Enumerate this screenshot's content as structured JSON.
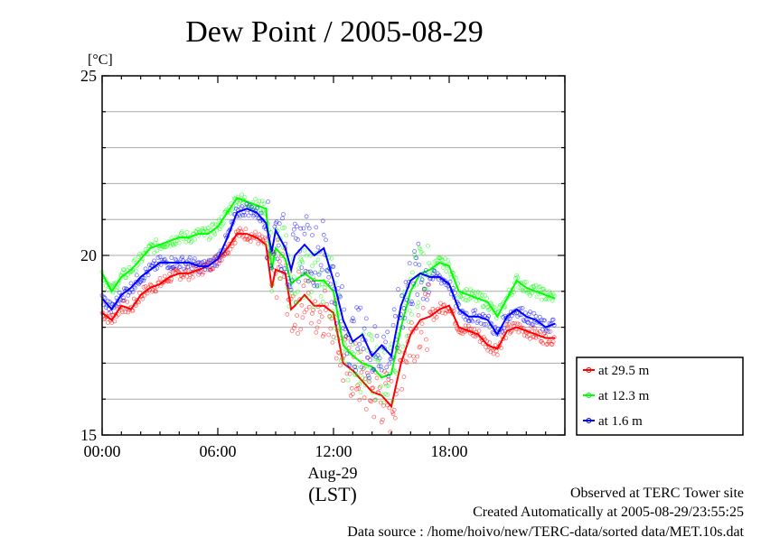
{
  "chart_data": {
    "type": "line",
    "title": "Dew Point / 2005-08-29",
    "ylabel": "[°C]",
    "ylim": [
      15,
      25
    ],
    "yticks": [
      "15",
      "20",
      "25"
    ],
    "xlim": [
      0,
      24
    ],
    "xticks": [
      "00:00",
      "06:00",
      "12:00",
      "18:00"
    ],
    "xlabel_date": "Aug-29",
    "xlabel_tz": "(LST)",
    "grid": true,
    "legend_position": "bottom-right, outside plot",
    "series": [
      {
        "name": "at 29.5 m",
        "color": "#ff0000",
        "x": [
          0,
          0.5,
          1,
          1.5,
          2,
          2.5,
          3,
          3.5,
          4,
          4.5,
          5,
          5.5,
          6,
          6.5,
          7,
          7.5,
          8,
          8.5,
          8.8,
          9,
          9.5,
          9.8,
          10,
          10.5,
          11,
          11.5,
          12,
          12.5,
          13,
          13.5,
          14,
          14.5,
          15,
          15.5,
          16,
          16.5,
          17,
          17.5,
          18,
          18.5,
          19,
          19.5,
          20,
          20.5,
          21,
          21.5,
          22,
          22.5,
          23,
          23.5
        ],
        "values": [
          18.4,
          18.2,
          18.6,
          18.5,
          18.9,
          19.1,
          19.2,
          19.4,
          19.5,
          19.5,
          19.6,
          19.7,
          19.9,
          20.2,
          20.6,
          20.6,
          20.5,
          20.3,
          19.1,
          19.6,
          19.5,
          18.5,
          18.6,
          18.9,
          18.6,
          18.6,
          18.4,
          17.0,
          16.8,
          16.5,
          16.2,
          16.1,
          15.8,
          17.0,
          17.8,
          18.2,
          18.3,
          18.5,
          18.6,
          18.0,
          17.9,
          17.8,
          17.5,
          17.4,
          17.9,
          18.0,
          17.9,
          17.8,
          17.7,
          17.7
        ]
      },
      {
        "name": "at 12.3 m",
        "color": "#00ff00",
        "x": [
          0,
          0.5,
          1,
          1.5,
          2,
          2.5,
          3,
          3.5,
          4,
          4.5,
          5,
          5.5,
          6,
          6.5,
          7,
          7.5,
          8,
          8.5,
          8.8,
          9,
          9.5,
          9.8,
          10,
          10.5,
          11,
          11.5,
          12,
          12.5,
          13,
          13.5,
          14,
          14.5,
          15,
          15.5,
          16,
          16.5,
          17,
          17.5,
          18,
          18.5,
          19,
          19.5,
          20,
          20.5,
          21,
          21.5,
          22,
          22.5,
          23,
          23.5
        ],
        "values": [
          19.5,
          19.0,
          19.4,
          19.6,
          19.9,
          20.2,
          20.3,
          20.4,
          20.5,
          20.5,
          20.6,
          20.6,
          20.8,
          21.2,
          21.6,
          21.5,
          21.4,
          21.3,
          19.6,
          20.2,
          19.9,
          19.2,
          19.3,
          19.5,
          19.3,
          19.3,
          19.0,
          17.5,
          17.2,
          17.0,
          16.9,
          16.6,
          16.7,
          18.0,
          19.0,
          19.5,
          19.6,
          19.8,
          19.7,
          19.0,
          18.9,
          18.8,
          18.7,
          18.3,
          18.8,
          19.3,
          19.1,
          19.0,
          18.9,
          18.8
        ]
      },
      {
        "name": "at 1.6 m",
        "color": "#0000ff",
        "x": [
          0,
          0.5,
          1,
          1.5,
          2,
          2.5,
          3,
          3.5,
          4,
          4.5,
          5,
          5.5,
          6,
          6.5,
          7,
          7.5,
          8,
          8.5,
          8.8,
          9,
          9.5,
          9.8,
          10,
          10.5,
          11,
          11.5,
          12,
          12.5,
          13,
          13.5,
          14,
          14.5,
          15,
          15.5,
          16,
          16.5,
          17,
          17.5,
          18,
          18.5,
          19,
          19.5,
          20,
          20.5,
          21,
          21.5,
          22,
          22.5,
          23,
          23.5
        ],
        "values": [
          18.8,
          18.5,
          18.9,
          19.1,
          19.4,
          19.6,
          19.8,
          19.8,
          19.8,
          19.8,
          19.7,
          19.7,
          19.9,
          20.5,
          21.2,
          21.3,
          21.2,
          20.9,
          20.1,
          20.7,
          20.2,
          19.6,
          20.0,
          20.3,
          20.0,
          20.2,
          19.3,
          18.2,
          17.6,
          17.8,
          17.2,
          17.5,
          17.2,
          18.6,
          19.3,
          19.5,
          19.4,
          19.4,
          19.2,
          18.5,
          18.3,
          18.3,
          18.2,
          17.8,
          18.3,
          18.5,
          18.3,
          18.2,
          18.0,
          18.1
        ]
      }
    ]
  },
  "footer": {
    "line1": "Observed at TERC Tower site",
    "line2": "Created Automatically at 2005-08-29/23:55:25",
    "line3": "Data source : /home/hoivo/new/TERC-data/sorted  data/MET.10s.dat"
  }
}
